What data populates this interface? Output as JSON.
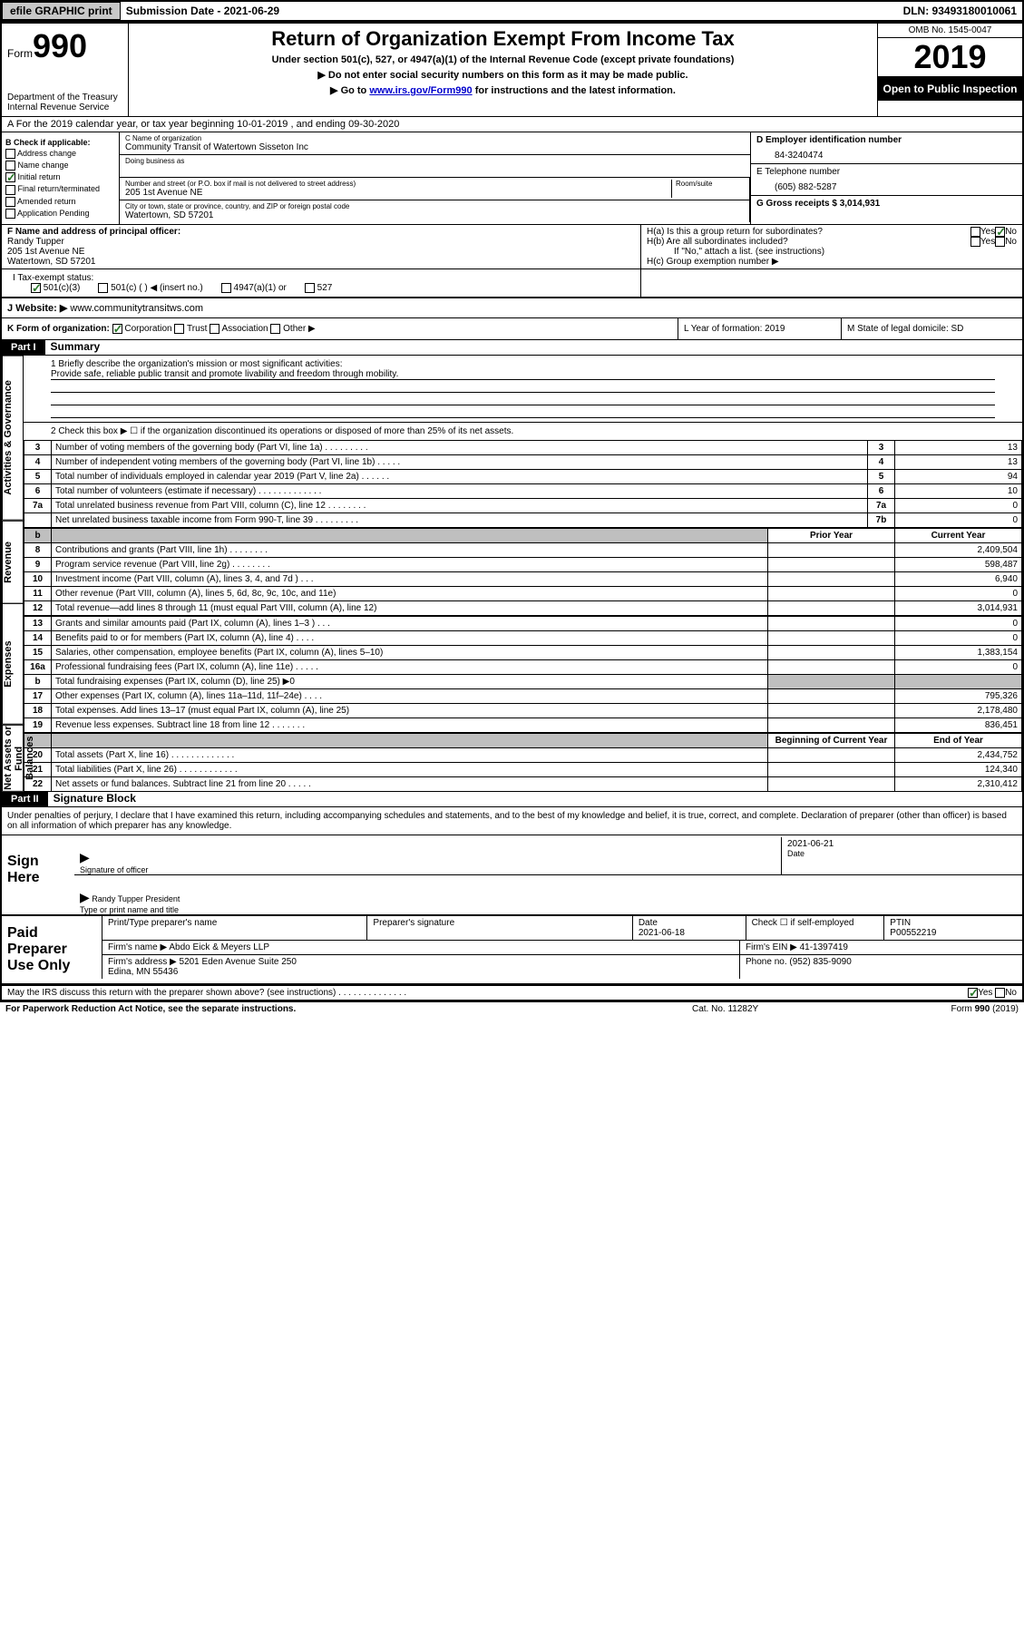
{
  "topbar": {
    "efile": "efile GRAPHIC print",
    "submission_label": "Submission Date - 2021-06-29",
    "dln": "DLN: 93493180010061"
  },
  "header": {
    "form_word": "Form",
    "form_num": "990",
    "dept": "Department of the Treasury",
    "irs": "Internal Revenue Service",
    "title": "Return of Organization Exempt From Income Tax",
    "sub": "Under section 501(c), 527, or 4947(a)(1) of the Internal Revenue Code (except private foundations)",
    "nossn": "▶ Do not enter social security numbers on this form as it may be made public.",
    "goto_pre": "▶ Go to ",
    "goto_link": "www.irs.gov/Form990",
    "goto_post": " for instructions and the latest information.",
    "omb": "OMB No. 1545-0047",
    "year": "2019",
    "open": "Open to Public Inspection"
  },
  "rowA": "A For the 2019 calendar year, or tax year beginning 10-01-2019   , and ending 09-30-2020",
  "colB": {
    "title": "B Check if applicable:",
    "items": [
      "Address change",
      "Name change",
      "Initial return",
      "Final return/terminated",
      "Amended return",
      "Application Pending"
    ],
    "checked_idx": 2
  },
  "colC": {
    "name_lbl": "C Name of organization",
    "name": "Community Transit of Watertown Sisseton Inc",
    "dba_lbl": "Doing business as",
    "addr_lbl": "Number and street (or P.O. box if mail is not delivered to street address)",
    "room_lbl": "Room/suite",
    "addr": "205 1st Avenue NE",
    "city_lbl": "City or town, state or province, country, and ZIP or foreign postal code",
    "city": "Watertown, SD  57201"
  },
  "colD": {
    "lbl": "D Employer identification number",
    "val": "84-3240474"
  },
  "colE": {
    "lbl": "E Telephone number",
    "val": "(605) 882-5287"
  },
  "colG": {
    "lbl": "G Gross receipts $ 3,014,931"
  },
  "rowF": {
    "lbl": "F  Name and address of principal officer:",
    "name": "Randy Tupper",
    "addr1": "205 1st Avenue NE",
    "addr2": "Watertown, SD  57201"
  },
  "rowH": {
    "ha": "H(a)  Is this a group return for subordinates?",
    "ha_no": true,
    "hb": "H(b)  Are all subordinates included?",
    "hb_note": "If \"No,\" attach a list. (see instructions)",
    "hc": "H(c)  Group exemption number ▶"
  },
  "rowI": {
    "lbl": "I   Tax-exempt status:",
    "opts": [
      "501(c)(3)",
      "501(c) (  ) ◀ (insert no.)",
      "4947(a)(1) or",
      "527"
    ],
    "checked_idx": 0
  },
  "rowJ": {
    "lbl": "J  Website: ▶  ",
    "val": "www.communitytransitws.com"
  },
  "rowK": {
    "lbl": "K Form of organization:",
    "corp": "Corporation",
    "trust": "Trust",
    "assoc": "Association",
    "other": "Other ▶"
  },
  "rowL": {
    "lbl": "L Year of formation: 2019"
  },
  "rowM": {
    "lbl": "M State of legal domicile: SD"
  },
  "part1": {
    "hdr": "Part I",
    "title": "Summary",
    "vert1": "Activities & Governance",
    "vert2": "Revenue",
    "vert3": "Expenses",
    "vert4": "Net Assets or Fund Balances",
    "q1_lbl": "1  Briefly describe the organization's mission or most significant activities:",
    "q1_val": "Provide safe, reliable public transit and promote livability and freedom through mobility.",
    "q2": "2   Check this box ▶ ☐  if the organization discontinued its operations or disposed of more than 25% of its net assets.",
    "rows_gov": [
      {
        "n": "3",
        "lbl": "Number of voting members of the governing body (Part VI, line 1a)   .    .    .    .    .    .    .    .    .",
        "box": "3",
        "val": "13"
      },
      {
        "n": "4",
        "lbl": "Number of independent voting members of the governing body (Part VI, line 1b)  .    .    .    .    .",
        "box": "4",
        "val": "13"
      },
      {
        "n": "5",
        "lbl": "Total number of individuals employed in calendar year 2019 (Part V, line 2a)   .    .    .    .    .    .",
        "box": "5",
        "val": "94"
      },
      {
        "n": "6",
        "lbl": "Total number of volunteers (estimate if necessary)   .    .    .    .    .    .    .    .    .    .    .    .    .",
        "box": "6",
        "val": "10"
      },
      {
        "n": "7a",
        "lbl": "Total unrelated business revenue from Part VIII, column (C), line 12   .    .    .    .    .    .    .    .",
        "box": "7a",
        "val": "0"
      },
      {
        "n": "",
        "lbl": "Net unrelated business taxable income from Form 990-T, line 39   .    .    .    .    .    .    .    .    .",
        "box": "7b",
        "val": "0"
      }
    ],
    "py_hdr": "Prior Year",
    "cy_hdr": "Current Year",
    "rows_rev": [
      {
        "n": "8",
        "lbl": "Contributions and grants (Part VIII, line 1h)   .    .    .    .    .    .    .    .",
        "py": "",
        "cy": "2,409,504"
      },
      {
        "n": "9",
        "lbl": "Program service revenue (Part VIII, line 2g)   .    .    .    .    .    .    .    .",
        "py": "",
        "cy": "598,487"
      },
      {
        "n": "10",
        "lbl": "Investment income (Part VIII, column (A), lines 3, 4, and 7d )   .    .    .",
        "py": "",
        "cy": "6,940"
      },
      {
        "n": "11",
        "lbl": "Other revenue (Part VIII, column (A), lines 5, 6d, 8c, 9c, 10c, and 11e)",
        "py": "",
        "cy": "0"
      },
      {
        "n": "12",
        "lbl": "Total revenue—add lines 8 through 11 (must equal Part VIII, column (A), line 12)",
        "py": "",
        "cy": "3,014,931"
      }
    ],
    "rows_exp": [
      {
        "n": "13",
        "lbl": "Grants and similar amounts paid (Part IX, column (A), lines 1–3 )   .    .    .",
        "py": "",
        "cy": "0"
      },
      {
        "n": "14",
        "lbl": "Benefits paid to or for members (Part IX, column (A), line 4)   .    .    .    .",
        "py": "",
        "cy": "0"
      },
      {
        "n": "15",
        "lbl": "Salaries, other compensation, employee benefits (Part IX, column (A), lines 5–10)",
        "py": "",
        "cy": "1,383,154"
      },
      {
        "n": "16a",
        "lbl": "Professional fundraising fees (Part IX, column (A), line 11e)   .    .    .    .    .",
        "py": "",
        "cy": "0"
      },
      {
        "n": "b",
        "lbl": "Total fundraising expenses (Part IX, column (D), line 25) ▶0",
        "py": "shaded",
        "cy": "shaded"
      },
      {
        "n": "17",
        "lbl": "Other expenses (Part IX, column (A), lines 11a–11d, 11f–24e)   .    .    .    .",
        "py": "",
        "cy": "795,326"
      },
      {
        "n": "18",
        "lbl": "Total expenses. Add lines 13–17 (must equal Part IX, column (A), line 25)",
        "py": "",
        "cy": "2,178,480"
      },
      {
        "n": "19",
        "lbl": "Revenue less expenses. Subtract line 18 from line 12   .    .    .    .    .    .    .",
        "py": "",
        "cy": "836,451"
      }
    ],
    "bcy_hdr": "Beginning of Current Year",
    "eoy_hdr": "End of Year",
    "rows_net": [
      {
        "n": "20",
        "lbl": "Total assets (Part X, line 16)   .    .    .    .    .    .    .    .    .    .    .    .    .",
        "py": "",
        "cy": "2,434,752"
      },
      {
        "n": "21",
        "lbl": "Total liabilities (Part X, line 26)   .    .    .    .    .    .    .    .    .    .    .    .",
        "py": "",
        "cy": "124,340"
      },
      {
        "n": "22",
        "lbl": "Net assets or fund balances. Subtract line 21 from line 20   .    .    .    .    .",
        "py": "",
        "cy": "2,310,412"
      }
    ]
  },
  "part2": {
    "hdr": "Part II",
    "title": "Signature Block",
    "perjury": "Under penalties of perjury, I declare that I have examined this return, including accompanying schedules and statements, and to the best of my knowledge and belief, it is true, correct, and complete. Declaration of preparer (other than officer) is based on all information of which preparer has any knowledge."
  },
  "sign": {
    "here": "Sign Here",
    "sig_lbl": "Signature of officer",
    "date": "2021-06-21",
    "date_lbl": "Date",
    "name": "Randy Tupper  President",
    "name_lbl": "Type or print name and title"
  },
  "prep": {
    "title": "Paid Preparer Use Only",
    "r1": {
      "c1": "Print/Type preparer's name",
      "c2": "Preparer's signature",
      "c3": "Date\n2021-06-18",
      "c4": "Check ☐ if self-employed",
      "c5": "PTIN\nP00552219"
    },
    "r2": {
      "c1": "Firm's name    ▶ Abdo Eick & Meyers LLP",
      "c2": "Firm's EIN ▶ 41-1397419"
    },
    "r3": {
      "c1": "Firm's address ▶ 5201 Eden Avenue Suite 250\nEdina, MN  55436",
      "c2": "Phone no. (952) 835-9090"
    }
  },
  "discuss": {
    "lbl": "May the IRS discuss this return with the preparer shown above? (see instructions)   .    .    .    .    .    .    .    .    .    .    .    .    .    .",
    "yes": true
  },
  "footer": {
    "left": "For Paperwork Reduction Act Notice, see the separate instructions.",
    "mid": "Cat. No. 11282Y",
    "right": "Form 990 (2019)"
  }
}
